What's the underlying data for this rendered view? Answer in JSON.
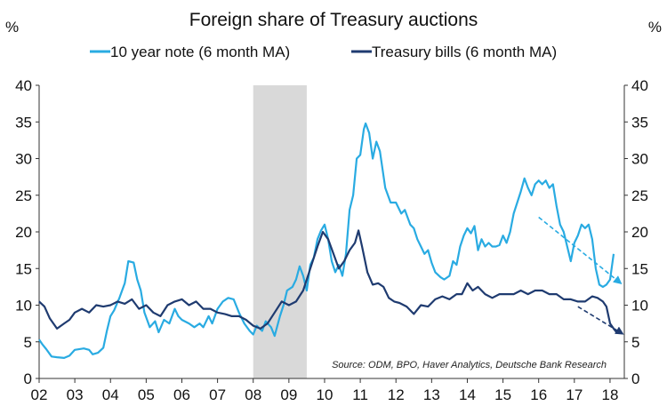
{
  "chart_data": {
    "type": "line",
    "title": "Foreign share of Treasury auctions",
    "ylabel_left": "%",
    "ylabel_right": "%",
    "ylim": [
      0,
      40
    ],
    "yticks": [
      0,
      5,
      10,
      15,
      20,
      25,
      30,
      35,
      40
    ],
    "xlim": [
      2002.0,
      2018.4
    ],
    "xticks": [
      2002,
      2003,
      2004,
      2005,
      2006,
      2007,
      2008,
      2009,
      2010,
      2011,
      2012,
      2013,
      2014,
      2015,
      2016,
      2017,
      2018
    ],
    "xtick_labels": [
      "02",
      "03",
      "04",
      "05",
      "06",
      "07",
      "08",
      "09",
      "10",
      "11",
      "12",
      "13",
      "14",
      "15",
      "16",
      "17",
      "18"
    ],
    "recession_band": [
      2008.0,
      2009.5
    ],
    "source": "Source: ODM, BPO, Haver Analytics, Deutsche Bank Research",
    "series": [
      {
        "name": "10 year note (6 month MA)",
        "color": "#29ABE2",
        "points": [
          [
            2002.0,
            5.3
          ],
          [
            2002.1,
            4.6
          ],
          [
            2002.2,
            4.0
          ],
          [
            2002.35,
            3.0
          ],
          [
            2002.5,
            2.9
          ],
          [
            2002.7,
            2.8
          ],
          [
            2002.85,
            3.1
          ],
          [
            2003.0,
            3.9
          ],
          [
            2003.25,
            4.1
          ],
          [
            2003.4,
            3.9
          ],
          [
            2003.5,
            3.3
          ],
          [
            2003.65,
            3.5
          ],
          [
            2003.8,
            4.2
          ],
          [
            2003.9,
            6.5
          ],
          [
            2004.0,
            8.5
          ],
          [
            2004.1,
            9.3
          ],
          [
            2004.25,
            11.0
          ],
          [
            2004.4,
            13.0
          ],
          [
            2004.5,
            16.0
          ],
          [
            2004.65,
            15.8
          ],
          [
            2004.75,
            13.5
          ],
          [
            2004.85,
            12.0
          ],
          [
            2004.95,
            9.0
          ],
          [
            2005.1,
            7.0
          ],
          [
            2005.25,
            7.8
          ],
          [
            2005.35,
            6.3
          ],
          [
            2005.5,
            8.0
          ],
          [
            2005.65,
            7.5
          ],
          [
            2005.8,
            9.5
          ],
          [
            2005.9,
            8.5
          ],
          [
            2006.0,
            8.0
          ],
          [
            2006.2,
            7.5
          ],
          [
            2006.35,
            7.0
          ],
          [
            2006.5,
            7.5
          ],
          [
            2006.6,
            7.0
          ],
          [
            2006.75,
            8.5
          ],
          [
            2006.85,
            7.5
          ],
          [
            2007.0,
            9.5
          ],
          [
            2007.15,
            10.5
          ],
          [
            2007.3,
            11.0
          ],
          [
            2007.45,
            10.8
          ],
          [
            2007.6,
            9.0
          ],
          [
            2007.75,
            7.5
          ],
          [
            2007.9,
            6.5
          ],
          [
            2008.0,
            6.0
          ],
          [
            2008.1,
            7.2
          ],
          [
            2008.25,
            6.5
          ],
          [
            2008.35,
            7.8
          ],
          [
            2008.5,
            7.0
          ],
          [
            2008.6,
            5.8
          ],
          [
            2008.75,
            8.5
          ],
          [
            2008.85,
            10.0
          ],
          [
            2008.95,
            12.0
          ],
          [
            2009.1,
            12.5
          ],
          [
            2009.2,
            13.5
          ],
          [
            2009.3,
            15.3
          ],
          [
            2009.4,
            14.0
          ],
          [
            2009.5,
            12.0
          ],
          [
            2009.6,
            15.5
          ],
          [
            2009.7,
            16.5
          ],
          [
            2009.8,
            19.0
          ],
          [
            2009.9,
            20.2
          ],
          [
            2010.0,
            21.0
          ],
          [
            2010.1,
            19.0
          ],
          [
            2010.2,
            16.0
          ],
          [
            2010.3,
            14.5
          ],
          [
            2010.4,
            15.5
          ],
          [
            2010.5,
            14.0
          ],
          [
            2010.6,
            17.0
          ],
          [
            2010.7,
            23.0
          ],
          [
            2010.8,
            25.0
          ],
          [
            2010.9,
            30.0
          ],
          [
            2011.0,
            30.5
          ],
          [
            2011.1,
            34.0
          ],
          [
            2011.15,
            34.8
          ],
          [
            2011.25,
            33.5
          ],
          [
            2011.35,
            30.0
          ],
          [
            2011.45,
            32.3
          ],
          [
            2011.55,
            31.0
          ],
          [
            2011.7,
            26.0
          ],
          [
            2011.85,
            24.0
          ],
          [
            2012.0,
            24.0
          ],
          [
            2012.15,
            22.5
          ],
          [
            2012.25,
            23.0
          ],
          [
            2012.4,
            21.0
          ],
          [
            2012.5,
            20.5
          ],
          [
            2012.6,
            19.0
          ],
          [
            2012.7,
            18.0
          ],
          [
            2012.8,
            17.0
          ],
          [
            2012.9,
            17.5
          ],
          [
            2013.0,
            15.8
          ],
          [
            2013.1,
            14.5
          ],
          [
            2013.25,
            13.8
          ],
          [
            2013.35,
            13.5
          ],
          [
            2013.5,
            14.0
          ],
          [
            2013.6,
            16.0
          ],
          [
            2013.7,
            15.5
          ],
          [
            2013.8,
            18.0
          ],
          [
            2013.9,
            19.5
          ],
          [
            2014.0,
            20.5
          ],
          [
            2014.1,
            19.8
          ],
          [
            2014.2,
            20.8
          ],
          [
            2014.3,
            17.5
          ],
          [
            2014.4,
            19.0
          ],
          [
            2014.5,
            18.0
          ],
          [
            2014.6,
            18.5
          ],
          [
            2014.7,
            18.0
          ],
          [
            2014.8,
            18.0
          ],
          [
            2014.9,
            18.2
          ],
          [
            2015.0,
            19.5
          ],
          [
            2015.1,
            18.5
          ],
          [
            2015.2,
            20.0
          ],
          [
            2015.3,
            22.5
          ],
          [
            2015.4,
            24.0
          ],
          [
            2015.5,
            25.5
          ],
          [
            2015.6,
            27.3
          ],
          [
            2015.7,
            26.0
          ],
          [
            2015.8,
            25.0
          ],
          [
            2015.9,
            26.5
          ],
          [
            2016.0,
            27.0
          ],
          [
            2016.1,
            26.5
          ],
          [
            2016.2,
            27.0
          ],
          [
            2016.3,
            26.0
          ],
          [
            2016.4,
            26.5
          ],
          [
            2016.5,
            23.5
          ],
          [
            2016.6,
            21.0
          ],
          [
            2016.7,
            20.0
          ],
          [
            2016.8,
            18.0
          ],
          [
            2016.9,
            16.0
          ],
          [
            2017.0,
            18.5
          ],
          [
            2017.1,
            19.5
          ],
          [
            2017.2,
            21.0
          ],
          [
            2017.3,
            20.5
          ],
          [
            2017.4,
            21.0
          ],
          [
            2017.5,
            19.0
          ],
          [
            2017.6,
            15.0
          ],
          [
            2017.7,
            12.8
          ],
          [
            2017.8,
            12.5
          ],
          [
            2017.9,
            12.8
          ],
          [
            2018.0,
            13.5
          ],
          [
            2018.1,
            17.0
          ]
        ],
        "trend_arrow": [
          [
            2016.0,
            22.0
          ],
          [
            2018.3,
            13.0
          ]
        ]
      },
      {
        "name": "Treasury bills (6 month MA)",
        "color": "#1F3B70",
        "points": [
          [
            2002.0,
            10.5
          ],
          [
            2002.15,
            9.8
          ],
          [
            2002.3,
            8.2
          ],
          [
            2002.5,
            6.8
          ],
          [
            2002.7,
            7.5
          ],
          [
            2002.85,
            8.0
          ],
          [
            2003.0,
            9.0
          ],
          [
            2003.2,
            9.5
          ],
          [
            2003.4,
            9.0
          ],
          [
            2003.6,
            10.0
          ],
          [
            2003.8,
            9.8
          ],
          [
            2004.0,
            10.0
          ],
          [
            2004.2,
            10.5
          ],
          [
            2004.4,
            10.2
          ],
          [
            2004.6,
            10.8
          ],
          [
            2004.8,
            9.5
          ],
          [
            2005.0,
            10.0
          ],
          [
            2005.2,
            9.0
          ],
          [
            2005.4,
            8.5
          ],
          [
            2005.6,
            10.0
          ],
          [
            2005.8,
            10.5
          ],
          [
            2006.0,
            10.8
          ],
          [
            2006.2,
            10.0
          ],
          [
            2006.4,
            10.5
          ],
          [
            2006.6,
            9.5
          ],
          [
            2006.8,
            9.5
          ],
          [
            2007.0,
            9.0
          ],
          [
            2007.2,
            8.8
          ],
          [
            2007.4,
            8.5
          ],
          [
            2007.6,
            8.5
          ],
          [
            2007.8,
            8.0
          ],
          [
            2008.0,
            7.2
          ],
          [
            2008.2,
            6.8
          ],
          [
            2008.4,
            7.5
          ],
          [
            2008.6,
            9.0
          ],
          [
            2008.8,
            10.5
          ],
          [
            2009.0,
            10.0
          ],
          [
            2009.2,
            10.5
          ],
          [
            2009.4,
            12.0
          ],
          [
            2009.6,
            15.0
          ],
          [
            2009.8,
            18.0
          ],
          [
            2009.95,
            20.0
          ],
          [
            2010.1,
            19.0
          ],
          [
            2010.25,
            17.0
          ],
          [
            2010.4,
            15.0
          ],
          [
            2010.55,
            16.0
          ],
          [
            2010.7,
            17.5
          ],
          [
            2010.85,
            18.5
          ],
          [
            2010.95,
            20.2
          ],
          [
            2011.05,
            18.0
          ],
          [
            2011.2,
            14.5
          ],
          [
            2011.35,
            12.8
          ],
          [
            2011.5,
            13.0
          ],
          [
            2011.65,
            12.5
          ],
          [
            2011.8,
            11.0
          ],
          [
            2011.95,
            10.5
          ],
          [
            2012.1,
            10.3
          ],
          [
            2012.3,
            9.8
          ],
          [
            2012.5,
            8.8
          ],
          [
            2012.7,
            10.0
          ],
          [
            2012.9,
            9.8
          ],
          [
            2013.1,
            10.8
          ],
          [
            2013.3,
            11.2
          ],
          [
            2013.5,
            10.8
          ],
          [
            2013.7,
            11.5
          ],
          [
            2013.85,
            11.5
          ],
          [
            2014.0,
            13.0
          ],
          [
            2014.15,
            12.0
          ],
          [
            2014.3,
            12.5
          ],
          [
            2014.5,
            11.5
          ],
          [
            2014.7,
            11.0
          ],
          [
            2014.9,
            11.5
          ],
          [
            2015.1,
            11.5
          ],
          [
            2015.3,
            11.5
          ],
          [
            2015.5,
            12.0
          ],
          [
            2015.7,
            11.5
          ],
          [
            2015.9,
            12.0
          ],
          [
            2016.1,
            12.0
          ],
          [
            2016.3,
            11.5
          ],
          [
            2016.5,
            11.5
          ],
          [
            2016.7,
            10.8
          ],
          [
            2016.9,
            10.8
          ],
          [
            2017.1,
            10.5
          ],
          [
            2017.3,
            10.5
          ],
          [
            2017.5,
            11.2
          ],
          [
            2017.65,
            11.0
          ],
          [
            2017.8,
            10.5
          ],
          [
            2017.9,
            9.8
          ],
          [
            2018.0,
            7.5
          ],
          [
            2018.1,
            6.8
          ],
          [
            2018.2,
            6.2
          ]
        ],
        "trend_arrow": [
          [
            2017.1,
            9.8
          ],
          [
            2018.35,
            6.1
          ]
        ]
      }
    ]
  }
}
